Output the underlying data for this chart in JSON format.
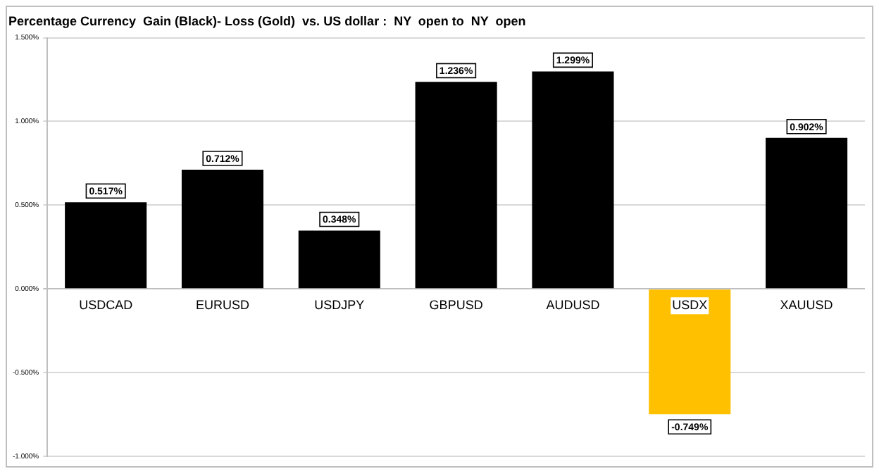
{
  "chart_data": {
    "type": "bar",
    "title": "Percentage Currency  Gain (Black)- Loss (Gold)  vs. US dollar :  NY  open to  NY  open",
    "categories": [
      "USDCAD",
      "EURUSD",
      "USDJPY",
      "GBPUSD",
      "AUDUSD",
      "USDX",
      "XAUUSD"
    ],
    "values": [
      0.517,
      0.712,
      0.348,
      1.236,
      1.299,
      -0.749,
      0.902
    ],
    "colors": [
      "#000000",
      "#000000",
      "#000000",
      "#000000",
      "#000000",
      "#ffc000",
      "#000000"
    ],
    "value_labels": [
      "0.517%",
      "0.712%",
      "0.348%",
      "1.236%",
      "1.299%",
      "-0.749%",
      "0.902%"
    ],
    "ylim": [
      -1,
      1.5
    ],
    "yticks": [
      {
        "value": -1,
        "label": "-1.000%"
      },
      {
        "value": -0.5,
        "label": "-0.500%"
      },
      {
        "value": 0,
        "label": "0.000%"
      },
      {
        "value": 0.5,
        "label": "0.500%"
      },
      {
        "value": 1,
        "label": "1.000%"
      },
      {
        "value": 1.5,
        "label": "1.500%"
      }
    ],
    "grid": "y",
    "legend": false
  }
}
